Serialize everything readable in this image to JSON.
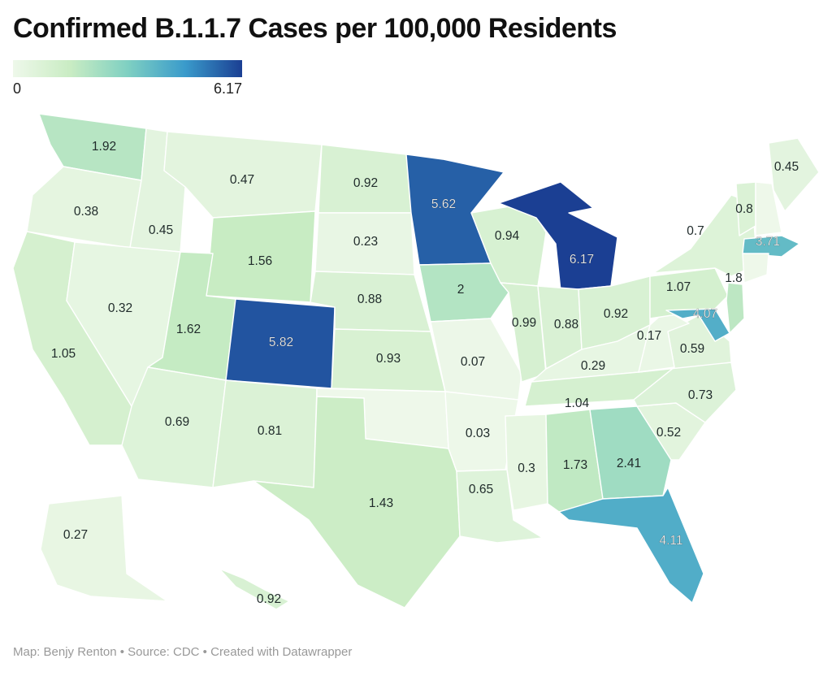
{
  "title": "Confirmed B.1.1.7 Cases per 100,000 Residents",
  "legend": {
    "min_label": "0",
    "max_label": "6.17",
    "min": 0,
    "max": 6.17
  },
  "footer": "Map: Benjy Renton • Source: CDC • Created with Datawrapper",
  "colors": {
    "low": "#eef8ea",
    "mid_low": "#c9ecc3",
    "mid": "#7fd0c2",
    "mid_high": "#3a9bcb",
    "high": "#1b3f93"
  },
  "states": [
    {
      "id": "WA",
      "label": "1.92"
    },
    {
      "id": "OR",
      "label": "0.38"
    },
    {
      "id": "CA",
      "label": "1.05"
    },
    {
      "id": "ID",
      "label": "0.45"
    },
    {
      "id": "NV",
      "label": "0.32"
    },
    {
      "id": "MT",
      "label": "0.47"
    },
    {
      "id": "WY",
      "label": "1.56"
    },
    {
      "id": "UT",
      "label": "1.62"
    },
    {
      "id": "AZ",
      "label": "0.69"
    },
    {
      "id": "CO",
      "label": "5.82"
    },
    {
      "id": "NM",
      "label": "0.81"
    },
    {
      "id": "ND",
      "label": "0.92"
    },
    {
      "id": "SD",
      "label": "0.23"
    },
    {
      "id": "NE",
      "label": "0.88"
    },
    {
      "id": "KS",
      "label": "0.93"
    },
    {
      "id": "OK",
      "label": ""
    },
    {
      "id": "TX",
      "label": "1.43"
    },
    {
      "id": "MN",
      "label": "5.62"
    },
    {
      "id": "IA",
      "label": "2"
    },
    {
      "id": "MO",
      "label": "0.07"
    },
    {
      "id": "AR",
      "label": "0.03"
    },
    {
      "id": "LA",
      "label": "0.65"
    },
    {
      "id": "WI",
      "label": "0.94"
    },
    {
      "id": "IL",
      "label": "0.99"
    },
    {
      "id": "MI",
      "label": "6.17"
    },
    {
      "id": "IN",
      "label": "0.88"
    },
    {
      "id": "OH",
      "label": "0.92"
    },
    {
      "id": "KY",
      "label": "0.29"
    },
    {
      "id": "TN",
      "label": "1.04"
    },
    {
      "id": "MS",
      "label": "0.3"
    },
    {
      "id": "AL",
      "label": "1.73"
    },
    {
      "id": "GA",
      "label": "2.41"
    },
    {
      "id": "FL",
      "label": "4.11"
    },
    {
      "id": "SC",
      "label": "0.52"
    },
    {
      "id": "NC",
      "label": "0.73"
    },
    {
      "id": "VA",
      "label": "0.59"
    },
    {
      "id": "WV",
      "label": "0.17"
    },
    {
      "id": "PA",
      "label": "1.07"
    },
    {
      "id": "NY",
      "label": "0.7"
    },
    {
      "id": "NJ",
      "label": "1.8"
    },
    {
      "id": "MD",
      "label": "4.07"
    },
    {
      "id": "VT",
      "label": "0.8"
    },
    {
      "id": "NH",
      "label": ""
    },
    {
      "id": "ME",
      "label": "0.45"
    },
    {
      "id": "MA",
      "label": "3.71"
    },
    {
      "id": "CT",
      "label": ""
    },
    {
      "id": "AK",
      "label": "0.27"
    },
    {
      "id": "HI",
      "label": "0.92"
    }
  ]
}
